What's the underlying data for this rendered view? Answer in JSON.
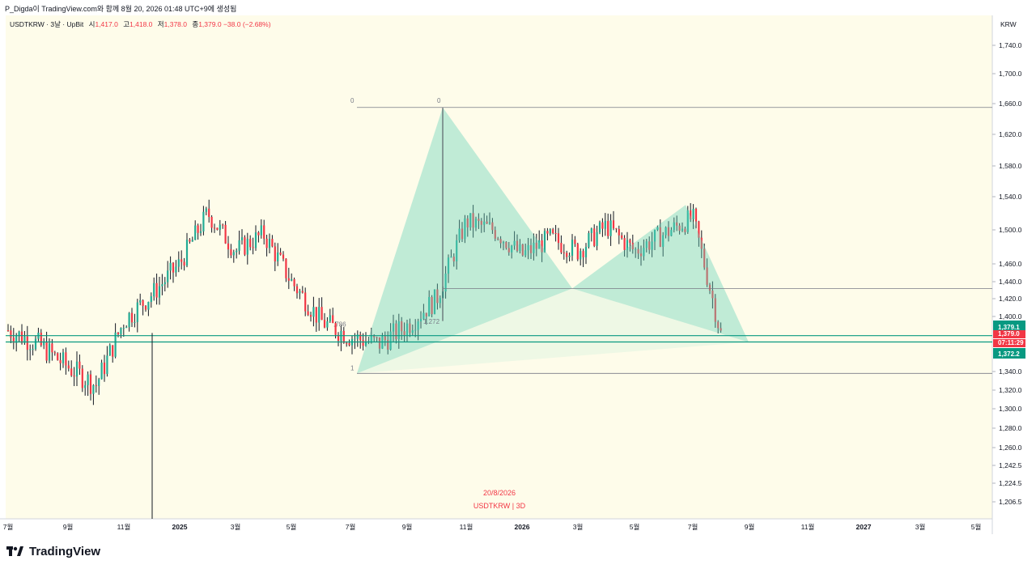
{
  "header": {
    "credit": "P_Digda이 TradingView.com와 함께 8월 20, 2026 01:48 UTC+9에 생성됨"
  },
  "legend": {
    "symbol": "USDTKRW · 3날 · UpBit",
    "open_label": "시",
    "open": "1,417.0",
    "high_label": "고",
    "high": "1,418.0",
    "low_label": "저",
    "low": "1,378.0",
    "close_label": "종",
    "close": "1,379.0",
    "change": "−38.0 (−2.68%)"
  },
  "watermark": {
    "date": "20/8/2026",
    "symbol": "USDTKRW | 3D"
  },
  "brand": {
    "name": "TradingView"
  },
  "chart_data": {
    "type": "candlestick",
    "currency": "KRW",
    "y_axis_ticks": [
      "1,740.0",
      "1,700.0",
      "1,660.0",
      "1,620.0",
      "1,580.0",
      "1,540.0",
      "1,500.0",
      "1,460.0",
      "1,440.0",
      "1,420.0",
      "1,400.0",
      "1,340.0",
      "1,320.0",
      "1,300.0",
      "1,280.0",
      "1,260.0",
      "1,242.5",
      "1,224.5",
      "1,206.5"
    ],
    "x_axis_ticks": [
      "7월",
      "9월",
      "11월",
      "2025",
      "3월",
      "5월",
      "7월",
      "9월",
      "11월",
      "2026",
      "3월",
      "5월",
      "7월",
      "9월",
      "11월",
      "2027",
      "3월",
      "5월"
    ],
    "price_labels": [
      {
        "text": "1,379.1",
        "kind": "level"
      },
      {
        "text": "1,379.0",
        "kind": "last"
      },
      {
        "text": "07:11:29",
        "kind": "countdown"
      },
      {
        "text": "1,372.2",
        "kind": "level"
      }
    ],
    "fib_labels": [
      "0",
      "0",
      "1",
      ".786",
      "1.272"
    ],
    "horizontal_levels": [
      1655,
      1432,
      1379.1,
      1372.2,
      1338
    ],
    "price_path_approx": [
      [
        "2024-07",
        1385
      ],
      [
        "2024-08",
        1370
      ],
      [
        "2024-09",
        1345
      ],
      [
        "2024-10",
        1325
      ],
      [
        "2024-11",
        1395
      ],
      [
        "2024-12",
        1425
      ],
      [
        "2025-01",
        1460
      ],
      [
        "2025-02",
        1520
      ],
      [
        "2025-03",
        1475
      ],
      [
        "2025-04",
        1495
      ],
      [
        "2025-05",
        1440
      ],
      [
        "2025-06",
        1395
      ],
      [
        "2025-07",
        1378
      ],
      [
        "2025-08",
        1370
      ],
      [
        "2025-09",
        1390
      ],
      [
        "2025-10",
        1420
      ],
      [
        "2025-11",
        1510
      ],
      [
        "2025-12",
        1500
      ],
      [
        "2026-01",
        1470
      ],
      [
        "2026-02",
        1490
      ],
      [
        "2026-03",
        1475
      ],
      [
        "2026-04",
        1505
      ],
      [
        "2026-05",
        1475
      ],
      [
        "2026-06",
        1495
      ],
      [
        "2026-07",
        1515
      ],
      [
        "2026-08",
        1379
      ]
    ]
  }
}
